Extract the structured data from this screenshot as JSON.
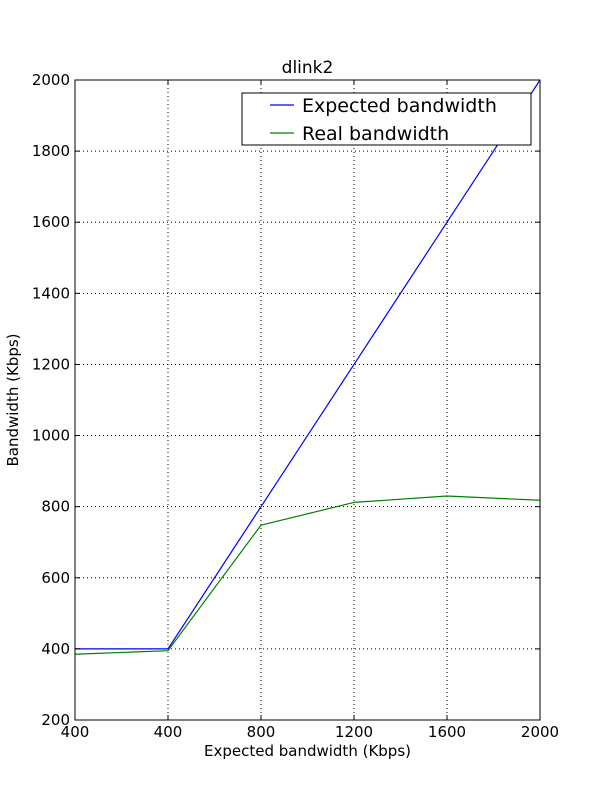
{
  "chart_data": {
    "type": "line",
    "title": "dlink2",
    "xlabel": "Expected bandwidth (Kbps)",
    "ylabel": "Bandwidth (Kbps)",
    "categories": [
      "400",
      "400",
      "800",
      "1200",
      "1600",
      "2000"
    ],
    "ylim": [
      200,
      2000
    ],
    "yticks": [
      200,
      400,
      600,
      800,
      1000,
      1200,
      1400,
      1600,
      1800,
      2000
    ],
    "grid": true,
    "legend_position": "top-right",
    "series": [
      {
        "name": "Expected bandwidth",
        "color": "#0000ff",
        "values": [
          400,
          400,
          800,
          1200,
          1600,
          2000
        ]
      },
      {
        "name": "Real bandwidth",
        "color": "#008000",
        "values": [
          385,
          395,
          748,
          812,
          830,
          818
        ]
      }
    ]
  }
}
